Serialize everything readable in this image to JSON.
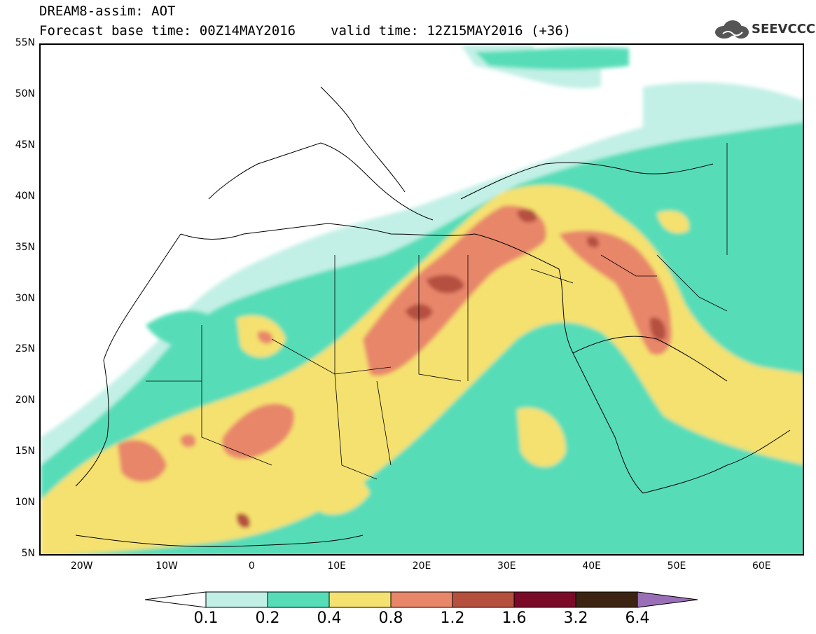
{
  "title": {
    "line1": "DREAM8-assim: AOT",
    "base_time": "Forecast base time: 00Z14MAY2016",
    "valid_time": "valid time: 12Z15MAY2016 (+36)"
  },
  "logo": {
    "text": "SEEVCCC"
  },
  "map": {
    "lon_range": [
      -25,
      65
    ],
    "lat_range": [
      5,
      55
    ],
    "lat_labels": [
      "55N",
      "50N",
      "45N",
      "40N",
      "35N",
      "30N",
      "25N",
      "20N",
      "15N",
      "10N",
      "5N"
    ],
    "lon_labels": [
      "20W",
      "10W",
      "0",
      "10E",
      "20E",
      "30E",
      "40E",
      "50E",
      "60E"
    ]
  },
  "colorbar": {
    "labels": [
      "0.1",
      "0.2",
      "0.4",
      "0.8",
      "1.2",
      "1.6",
      "3.2",
      "6.4"
    ],
    "colors": [
      "#c2f0e6",
      "#56ddb8",
      "#f5e16f",
      "#e8866a",
      "#b5503f",
      "#7a0a28",
      "#3d2412"
    ],
    "under_color": "#ffffff",
    "over_color": "#9a6fb8"
  }
}
